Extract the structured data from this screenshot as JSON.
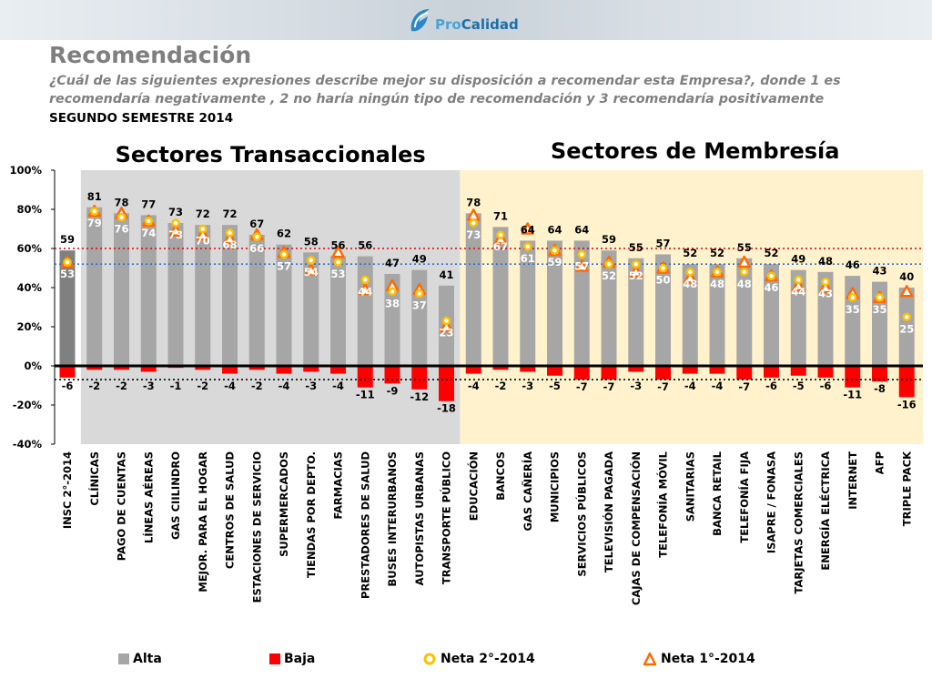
{
  "header": {
    "brand_prefix": "Pro",
    "brand_name": "Calidad",
    "title": "Recomendación",
    "question": "¿Cuál de las siguientes expresiones describe mejor su disposición a recomendar esta Empresa?, donde 1 es recomendaría negativamente , 2 no haría ningún tipo de recomendación  y 3 recomendaría positivamente",
    "semester": "SEGUNDO SEMESTRE 2014"
  },
  "chart_data": {
    "type": "bar",
    "section_titles": [
      "Sectores Transaccionales",
      "Sectores de Membresía"
    ],
    "categories": [
      "INSC 2°-2014",
      "CLÍNICAS",
      "PAGO DE CUENTAS",
      "LÍNEAS AÉREAS",
      "GAS CIILINDRO",
      "MEJOR. PARA EL HOGAR",
      "CENTROS DE SALUD",
      "ESTACIONES DE SERVICIO",
      "SUPERMERCADOS",
      "TIENDAS POR DEPTO.",
      "FARMACIAS",
      "PRESTADORES DE SALUD",
      "BUSES INTERURBANOS",
      "AUTOPISTAS URBANAS",
      "TRANSPORTE PÚBLICO",
      "EDUCACIÓN",
      "BANCOS",
      "GAS CAÑERÍA",
      "MUNICIPIOS",
      "SERVICIOS PÚBLICOS",
      "TELEVISIÓN PAGADA",
      "CAJAS DE COMPENSACIÓN",
      "TELEFONÍA MÓVIL",
      "SANITARIAS",
      "BANCA RETAIL",
      "TELEFONÍA FIJA",
      "ISAPRE / FONASA",
      "TARJETAS COMERCIALES",
      "ENERGÍA ELÉCTRICA",
      "INTERNET",
      "AFP",
      "TRIPLE PACK"
    ],
    "section_of_category": [
      0,
      1,
      1,
      1,
      1,
      1,
      1,
      1,
      1,
      1,
      1,
      1,
      1,
      1,
      1,
      2,
      2,
      2,
      2,
      2,
      2,
      2,
      2,
      2,
      2,
      2,
      2,
      2,
      2,
      2,
      2,
      2
    ],
    "series": [
      {
        "name": "Alta",
        "color": "#a6a6a6",
        "values": [
          59,
          81,
          78,
          77,
          73,
          72,
          72,
          67,
          62,
          58,
          56,
          56,
          47,
          49,
          41,
          78,
          71,
          64,
          64,
          64,
          59,
          55,
          57,
          52,
          52,
          55,
          52,
          49,
          48,
          46,
          43,
          40
        ]
      },
      {
        "name": "Baja",
        "color": "#ff0000",
        "values": [
          -6,
          -2,
          -2,
          -3,
          -1,
          -2,
          -4,
          -2,
          -4,
          -3,
          -4,
          -11,
          -9,
          -12,
          -18,
          -4,
          -2,
          -3,
          -5,
          -7,
          -7,
          -3,
          -7,
          -4,
          -4,
          -7,
          -6,
          -5,
          -6,
          -11,
          -8,
          -16
        ]
      },
      {
        "name": "Neta 2°-2014",
        "color": "#ffc000",
        "values": [
          53,
          79,
          76,
          74,
          73,
          70,
          68,
          66,
          57,
          54,
          53,
          44,
          38,
          37,
          23,
          73,
          67,
          61,
          59,
          57,
          52,
          52,
          50,
          48,
          48,
          48,
          46,
          44,
          43,
          35,
          35,
          25
        ]
      },
      {
        "name": "Neta 1°-2014",
        "color": "#ff6a00",
        "values": [
          53,
          79,
          78,
          74,
          69,
          67,
          65,
          67,
          58,
          49,
          58,
          39,
          41,
          39,
          20,
          77,
          65,
          70,
          59,
          51,
          53,
          48,
          50,
          45,
          48,
          53,
          46,
          41,
          40,
          37,
          35,
          38
        ]
      }
    ],
    "reference_lines": {
      "alta_red_dotted": 60,
      "neta_blue_dotted": 52,
      "baja_black_dotted": -7
    },
    "ylim": [
      -40,
      100
    ],
    "yticks": [
      -40,
      -20,
      0,
      20,
      40,
      60,
      80,
      100
    ],
    "ytick_labels": [
      "-40%",
      "-20%",
      "0%",
      "20%",
      "40%",
      "60%",
      "80%",
      "100%"
    ],
    "legend_position": "bottom",
    "colors": {
      "section_transaccional_bg": "#d9d9d9",
      "section_membresia_bg": "#fff2cc",
      "insc_bar": "#808080"
    }
  }
}
